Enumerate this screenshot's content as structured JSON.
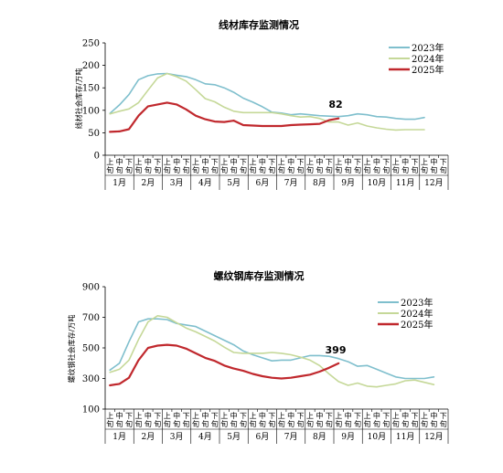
{
  "chart_data": [
    {
      "type": "line",
      "title": "线材库存监测情况",
      "ylabel": "线材社会库存/万吨",
      "ylim": [
        0,
        250
      ],
      "yticks": [
        0,
        50,
        100,
        150,
        200,
        250
      ],
      "x_sub_labels": [
        "上旬",
        "中旬",
        "下旬"
      ],
      "months": [
        "1月",
        "2月",
        "3月",
        "4月",
        "5月",
        "6月",
        "7月",
        "8月",
        "9月",
        "10月",
        "11月",
        "12月"
      ],
      "legend_position": "top-right",
      "series": [
        {
          "name": "2023年",
          "color": "#7fbfcd",
          "values": [
            93,
            112,
            135,
            168,
            177,
            181,
            182,
            178,
            175,
            168,
            159,
            157,
            150,
            140,
            127,
            118,
            108,
            96,
            94,
            90,
            92,
            90,
            88,
            87,
            86,
            88,
            92,
            90,
            86,
            85,
            82,
            80,
            80,
            84
          ]
        },
        {
          "name": "2024年",
          "color": "#c5d898",
          "values": [
            92,
            98,
            103,
            117,
            145,
            172,
            182,
            175,
            165,
            146,
            126,
            119,
            107,
            98,
            95,
            95,
            95,
            95,
            92,
            88,
            85,
            86,
            82,
            74,
            74,
            67,
            72,
            65,
            61,
            58,
            56,
            57,
            57,
            57
          ]
        },
        {
          "name": "2025年",
          "color": "#c0282d",
          "values": [
            52,
            53,
            58,
            88,
            109,
            113,
            117,
            113,
            102,
            88,
            80,
            75,
            74,
            77,
            67,
            66,
            65,
            65,
            65,
            67,
            68,
            69,
            70,
            78,
            82
          ]
        }
      ],
      "annotation": {
        "text": "82"
      }
    },
    {
      "type": "line",
      "title": "螺纹钢库存监测情况",
      "ylabel": "螺纹钢社会库存/万吨",
      "ylim": [
        100,
        900
      ],
      "yticks": [
        100,
        300,
        500,
        700,
        900
      ],
      "x_sub_labels": [
        "上旬",
        "中旬",
        "下旬"
      ],
      "months": [
        "1月",
        "2月",
        "3月",
        "4月",
        "5月",
        "6月",
        "7月",
        "8月",
        "9月",
        "10月",
        "11月",
        "12月"
      ],
      "legend_position": "top-right",
      "series": [
        {
          "name": "2023年",
          "color": "#7fbfcd",
          "values": [
            355,
            400,
            540,
            670,
            690,
            690,
            685,
            660,
            650,
            640,
            610,
            580,
            550,
            520,
            480,
            455,
            435,
            415,
            420,
            420,
            435,
            450,
            450,
            445,
            430,
            410,
            380,
            385,
            360,
            335,
            310,
            300,
            300,
            300,
            310
          ]
        },
        {
          "name": "2024年",
          "color": "#c5d898",
          "values": [
            340,
            360,
            420,
            555,
            670,
            710,
            700,
            665,
            630,
            605,
            575,
            545,
            505,
            470,
            465,
            465,
            465,
            470,
            465,
            455,
            440,
            420,
            385,
            330,
            280,
            255,
            270,
            250,
            245,
            255,
            265,
            285,
            290,
            275,
            260
          ]
        },
        {
          "name": "2025年",
          "color": "#c0282d",
          "values": [
            255,
            265,
            305,
            420,
            500,
            515,
            520,
            515,
            495,
            465,
            435,
            415,
            385,
            365,
            350,
            330,
            315,
            305,
            300,
            305,
            315,
            325,
            345,
            370,
            399
          ]
        }
      ],
      "annotation": {
        "text": "399"
      }
    }
  ]
}
